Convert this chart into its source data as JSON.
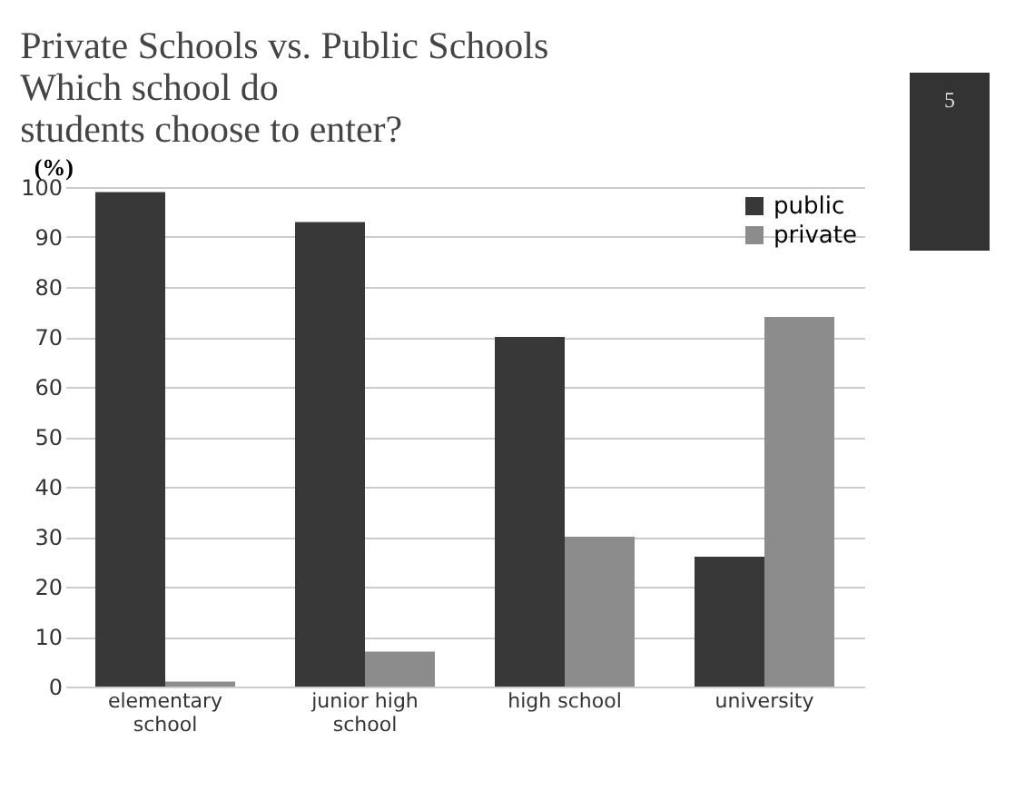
{
  "chart_data": {
    "type": "bar",
    "title": "Private Schools vs. Public Schools",
    "subtitle": "Which school do students choose to enter?",
    "ylabel": "(%)",
    "categories": [
      "elementary school",
      "junior high school",
      "high school",
      "university"
    ],
    "series": [
      {
        "name": "public",
        "color": "#383838",
        "values": [
          99,
          93,
          70,
          26
        ]
      },
      {
        "name": "private",
        "color": "#8c8c8c",
        "values": [
          1,
          7,
          30,
          74
        ]
      }
    ],
    "ylim": [
      0,
      100
    ],
    "yticks": [
      0,
      10,
      20,
      30,
      40,
      50,
      60,
      70,
      80,
      90,
      100
    ],
    "grid": "y",
    "legend": "top right",
    "annotations": [
      "5"
    ]
  }
}
